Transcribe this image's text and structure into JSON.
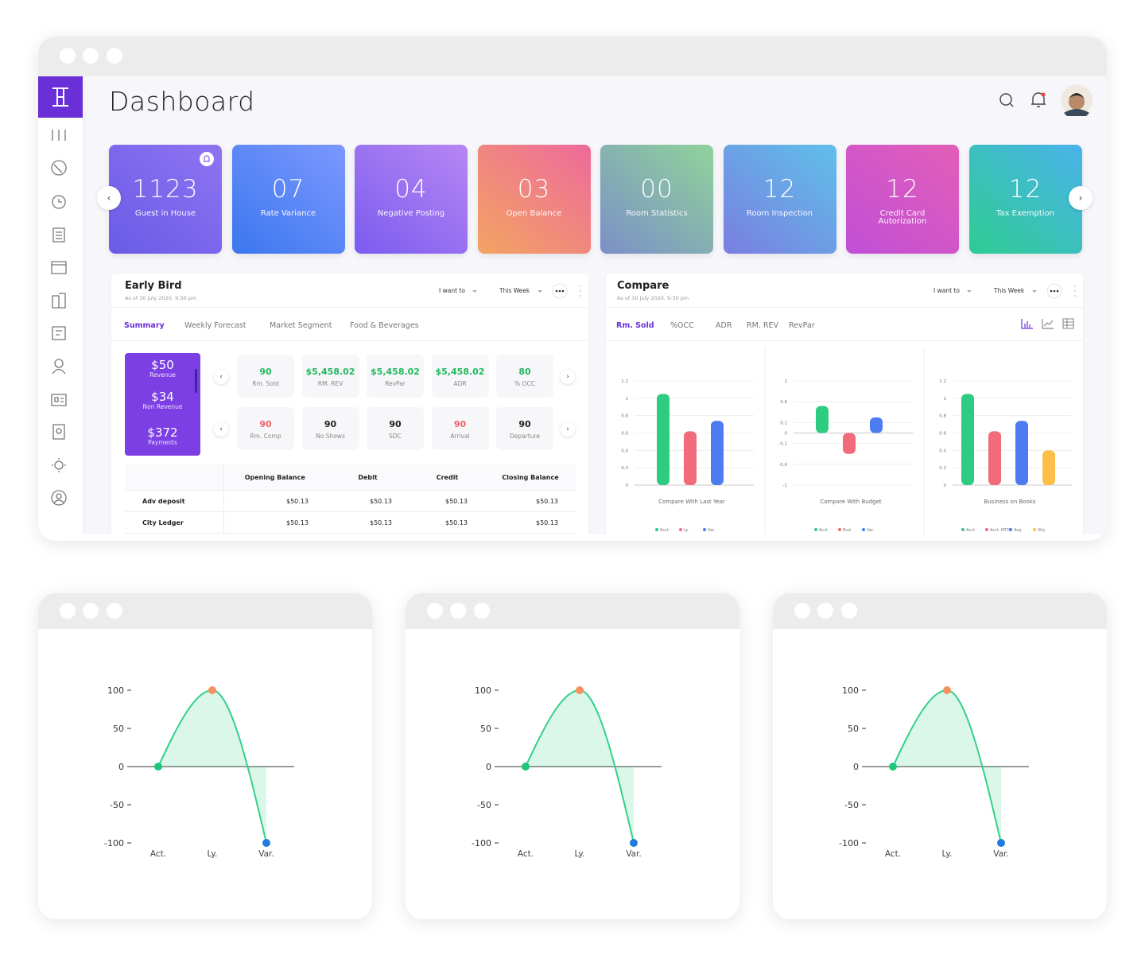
{
  "header": {
    "title": "Dashboard"
  },
  "cards": [
    {
      "value": "1123",
      "label": "Guest in House"
    },
    {
      "value": "07",
      "label": "Rate Variance"
    },
    {
      "value": "04",
      "label": "Negative Posting"
    },
    {
      "value": "03",
      "label": "Open Balance"
    },
    {
      "value": "00",
      "label": "Room Statistics"
    },
    {
      "value": "12",
      "label": "Room Inspection"
    },
    {
      "value": "12",
      "label": "Credit Card Autorization"
    },
    {
      "value": "12",
      "label": "Tax Exemption"
    }
  ],
  "early_bird": {
    "title": "Early Bird",
    "subtitle": "As of 30 July 2020, 9:30 pm",
    "action": "I want to",
    "period": "This Week",
    "tabs": [
      "Summary",
      "Weekly Forecast",
      "Market Segment",
      "Food & Beverages"
    ],
    "totals": [
      {
        "value": "$50",
        "label": "Revenue"
      },
      {
        "value": "$34",
        "label": "Non Revenue"
      },
      {
        "value": "$372",
        "label": "Payments"
      }
    ],
    "stats": [
      [
        {
          "value": "90",
          "label": "Rm. Sold",
          "color": "#22b85c"
        },
        {
          "value": "$5,458.02",
          "label": "RM. REV",
          "color": "#22b85c"
        },
        {
          "value": "$5,458.02",
          "label": "RevPar",
          "color": "#22b85c"
        },
        {
          "value": "$5,458.02",
          "label": "ADR",
          "color": "#22b85c"
        },
        {
          "value": "80",
          "label": "% OCC",
          "color": "#22b85c"
        }
      ],
      [
        {
          "value": "90",
          "label": "Rm. Comp",
          "color": "#f0626a"
        },
        {
          "value": "90",
          "label": "No Shows",
          "color": "#222222"
        },
        {
          "value": "90",
          "label": "SDC",
          "color": "#222222"
        },
        {
          "value": "90",
          "label": "Arrival",
          "color": "#f0626a"
        },
        {
          "value": "90",
          "label": "Departure",
          "color": "#222222"
        }
      ]
    ],
    "table": {
      "columns": [
        "Opening Balance",
        "Debit",
        "Credit",
        "Closing Balance"
      ],
      "rows": [
        [
          "Adv deposit",
          "$50.13",
          "$50.13",
          "$50.13",
          "$50.13"
        ],
        [
          "City Ledger",
          "$50.13",
          "$50.13",
          "$50.13",
          "$50.13"
        ]
      ]
    }
  },
  "compare": {
    "title": "Compare",
    "subtitle": "As of 30 July 2020, 9:30 pm",
    "action": "I want to",
    "period": "This Week",
    "tabs": [
      "Rm. Sold",
      "%OCC",
      "ADR",
      "RM. REV",
      "RevPar"
    ],
    "charts": [
      {
        "type": "bar",
        "title": "Compare With Last Year",
        "ylim": [
          0,
          1.2
        ],
        "yticks": [
          0,
          0.2,
          0.4,
          0.6,
          0.8,
          1,
          1.2
        ],
        "grid": true,
        "series": [
          {
            "name": "Acct.",
            "color": "#2ecc80",
            "values": [
              1.05
            ]
          },
          {
            "name": "Ly.",
            "color": "#f26b7a",
            "values": [
              0.62
            ]
          },
          {
            "name": "Var.",
            "color": "#4d7cf2",
            "values": [
              0.74
            ]
          }
        ]
      },
      {
        "type": "bar",
        "title": "Compare With Budget",
        "ylim": [
          -1,
          1
        ],
        "yticks": [
          -1,
          -0.6,
          -0.2,
          0,
          0.2,
          0.6,
          1
        ],
        "grid": true,
        "series": [
          {
            "name": "Acct.",
            "color": "#2ecc80",
            "values": [
              0.52
            ]
          },
          {
            "name": "Bud.",
            "color": "#f26b7a",
            "values": [
              -0.4
            ]
          },
          {
            "name": "Var.",
            "color": "#4d7cf2",
            "values": [
              0.3
            ]
          }
        ]
      },
      {
        "type": "bar",
        "title": "Business on Books",
        "ylim": [
          0,
          1.2
        ],
        "yticks": [
          0,
          0.2,
          0.4,
          0.6,
          0.8,
          1,
          1.2
        ],
        "grid": true,
        "series": [
          {
            "name": "Acct.",
            "color": "#2ecc80",
            "values": [
              1.05
            ]
          },
          {
            "name": "Acct. MTD",
            "color": "#f26b7a",
            "values": [
              0.62
            ]
          },
          {
            "name": "Avg",
            "color": "#4d7cf2",
            "values": [
              0.74
            ]
          },
          {
            "name": "Stly",
            "color": "#fbbf4a",
            "values": [
              0.4
            ]
          }
        ]
      }
    ]
  },
  "trend_charts": [
    {
      "type": "line",
      "categories": [
        "Act.",
        "Ly.",
        "Var."
      ],
      "values": [
        0,
        100,
        -100
      ],
      "ylim": [
        -100,
        100
      ],
      "yticks": [
        100,
        50,
        0,
        -50,
        -100
      ],
      "color": "#34d08a",
      "point_colors": [
        "#1ec77a",
        "#f7905e",
        "#1f7be0"
      ]
    },
    {
      "type": "line",
      "categories": [
        "Act.",
        "Ly.",
        "Var."
      ],
      "values": [
        0,
        100,
        -100
      ],
      "ylim": [
        -100,
        100
      ],
      "yticks": [
        100,
        50,
        0,
        -50,
        -100
      ],
      "color": "#34d08a",
      "point_colors": [
        "#1ec77a",
        "#f7905e",
        "#1f7be0"
      ]
    },
    {
      "type": "line",
      "categories": [
        "Act.",
        "Ly.",
        "Var."
      ],
      "values": [
        0,
        100,
        -100
      ],
      "ylim": [
        -100,
        100
      ],
      "yticks": [
        100,
        50,
        0,
        -50,
        -100
      ],
      "color": "#34d08a",
      "point_colors": [
        "#1ec77a",
        "#f7905e",
        "#1f7be0"
      ]
    }
  ]
}
